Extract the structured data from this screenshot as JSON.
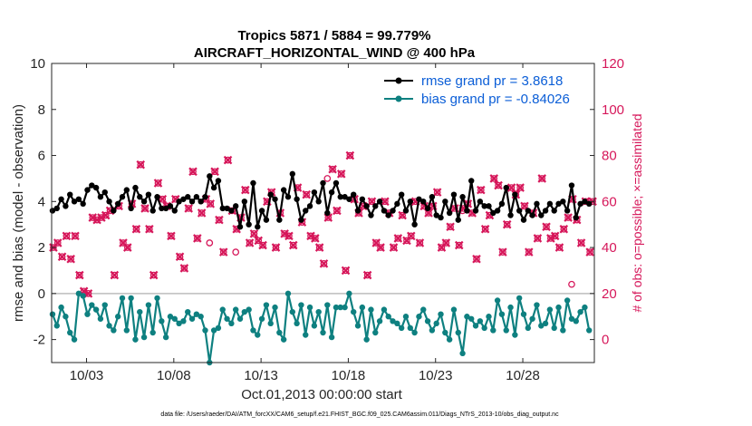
{
  "chart_data": {
    "type": "line",
    "title_line1": "Tropics 5871 / 5884 = 99.779%",
    "title_line2": "AIRCRAFT_HORIZONTAL_WIND @ 400 hPa",
    "ylabel_left": "rmse and bias (model - observation)",
    "ylabel_right": "# of obs: o=possible; ×=assimilated",
    "xlabel": "Oct.01,2013 00:00:00 start",
    "footnote": "data file: /Users/raeder/DAI/ATM_forcXX/CAM6_setup/f.e21.FHIST_BGC.f09_025.CAM6assim.011/Diags_NTrS_2013-10/obs_diag_output.nc",
    "ylim_left": [
      -3,
      10
    ],
    "ylim_right": [
      -10,
      120
    ],
    "xlim": [
      1.0,
      32.1
    ],
    "left_ticks": [
      "-2",
      "0",
      "2",
      "4",
      "6",
      "8",
      "10"
    ],
    "right_ticks": [
      "0",
      "20",
      "40",
      "60",
      "80",
      "100",
      "120"
    ],
    "x_tick_positions": [
      3,
      8,
      13,
      18,
      23,
      28
    ],
    "x_tick_labels": [
      "10/03",
      "10/08",
      "10/13",
      "10/18",
      "10/23",
      "10/28"
    ],
    "legend": {
      "rmse": "rmse grand pr = 3.8618",
      "bias": "bias grand pr = -0.84026"
    },
    "colors": {
      "rmse": "#000000",
      "bias": "#0e8080",
      "obs": "#d6175a",
      "zero_line": "#bdbdbd"
    },
    "series": [
      {
        "name": "rmse",
        "x": [
          1.05,
          1.3,
          1.55,
          1.8,
          2.05,
          2.3,
          2.55,
          2.8,
          3.05,
          3.3,
          3.55,
          3.8,
          4.05,
          4.3,
          4.55,
          4.8,
          5.05,
          5.3,
          5.55,
          5.8,
          6.05,
          6.3,
          6.55,
          6.8,
          7.05,
          7.3,
          7.55,
          7.8,
          8.05,
          8.3,
          8.55,
          8.8,
          9.05,
          9.3,
          9.55,
          9.8,
          10.05,
          10.3,
          10.55,
          10.8,
          11.05,
          11.3,
          11.55,
          11.8,
          12.05,
          12.3,
          12.55,
          12.8,
          13.05,
          13.3,
          13.55,
          13.8,
          14.05,
          14.3,
          14.55,
          14.8,
          15.05,
          15.3,
          15.55,
          15.8,
          16.05,
          16.3,
          16.55,
          16.8,
          17.05,
          17.3,
          17.55,
          17.8,
          18.05,
          18.3,
          18.55,
          18.8,
          19.05,
          19.3,
          19.55,
          19.8,
          20.05,
          20.3,
          20.55,
          20.8,
          21.05,
          21.3,
          21.55,
          21.8,
          22.05,
          22.3,
          22.55,
          22.8,
          23.05,
          23.3,
          23.55,
          23.8,
          24.05,
          24.3,
          24.55,
          24.8,
          25.05,
          25.3,
          25.55,
          25.8,
          26.05,
          26.3,
          26.55,
          26.8,
          27.05,
          27.3,
          27.55,
          27.8,
          28.05,
          28.3,
          28.55,
          28.8,
          29.05,
          29.3,
          29.55,
          29.8,
          30.05,
          30.3,
          30.55,
          30.8,
          31.05,
          31.3,
          31.55,
          31.8
        ],
        "values": [
          3.6,
          3.7,
          4.1,
          3.8,
          4.3,
          4.0,
          4.1,
          3.9,
          4.5,
          4.7,
          4.6,
          4.2,
          4.4,
          4.0,
          3.6,
          3.9,
          4.2,
          4.5,
          3.7,
          4.6,
          4.2,
          4.0,
          4.3,
          3.6,
          4.2,
          3.7,
          3.7,
          3.8,
          3.6,
          4.0,
          4.1,
          4.2,
          4.0,
          4.2,
          4.0,
          4.2,
          5.1,
          4.6,
          4.9,
          3.7,
          3.7,
          3.6,
          3.8,
          2.9,
          4.0,
          3.0,
          4.8,
          2.9,
          3.6,
          3.2,
          4.3,
          4.1,
          3.2,
          4.5,
          4.2,
          5.2,
          4.1,
          3.2,
          3.6,
          3.8,
          4.4,
          4.0,
          4.8,
          3.5,
          4.4,
          4.8,
          4.2,
          4.2,
          4.1,
          4.3,
          3.6,
          4.1,
          3.8,
          3.4,
          3.8,
          4.0,
          3.6,
          3.4,
          3.6,
          3.9,
          4.3,
          3.6,
          4.0,
          3.0,
          4.1,
          4.0,
          3.7,
          4.2,
          3.4,
          3.3,
          4.0,
          3.5,
          4.3,
          3.2,
          4.2,
          3.6,
          4.9,
          3.6,
          4.0,
          3.8,
          3.8,
          3.5,
          3.6,
          3.9,
          4.6,
          3.4,
          4.3,
          3.6,
          3.2,
          3.6,
          3.4,
          3.9,
          3.4,
          3.6,
          3.9,
          3.6,
          3.9,
          4.0,
          3.6,
          4.7,
          3.3,
          3.9,
          4.0,
          3.9
        ]
      },
      {
        "name": "bias",
        "x": [
          1.05,
          1.3,
          1.55,
          1.8,
          2.05,
          2.3,
          2.55,
          2.8,
          3.05,
          3.3,
          3.55,
          3.8,
          4.05,
          4.3,
          4.55,
          4.8,
          5.05,
          5.3,
          5.55,
          5.8,
          6.05,
          6.3,
          6.55,
          6.8,
          7.05,
          7.3,
          7.55,
          7.8,
          8.05,
          8.3,
          8.55,
          8.8,
          9.05,
          9.3,
          9.55,
          9.8,
          10.05,
          10.3,
          10.55,
          10.8,
          11.05,
          11.3,
          11.55,
          11.8,
          12.05,
          12.3,
          12.55,
          12.8,
          13.05,
          13.3,
          13.55,
          13.8,
          14.05,
          14.3,
          14.55,
          14.8,
          15.05,
          15.3,
          15.55,
          15.8,
          16.05,
          16.3,
          16.55,
          16.8,
          17.05,
          17.3,
          17.55,
          17.8,
          18.05,
          18.3,
          18.55,
          18.8,
          19.05,
          19.3,
          19.55,
          19.8,
          20.05,
          20.3,
          20.55,
          20.8,
          21.05,
          21.3,
          21.55,
          21.8,
          22.05,
          22.3,
          22.55,
          22.8,
          23.05,
          23.3,
          23.55,
          23.8,
          24.05,
          24.3,
          24.55,
          24.8,
          25.05,
          25.3,
          25.55,
          25.8,
          26.05,
          26.3,
          26.55,
          26.8,
          27.05,
          27.3,
          27.55,
          27.8,
          28.05,
          28.3,
          28.55,
          28.8,
          29.05,
          29.3,
          29.55,
          29.8,
          30.05,
          30.3,
          30.55,
          30.8,
          31.05,
          31.3,
          31.55,
          31.8
        ],
        "values": [
          -0.9,
          -1.4,
          -0.6,
          -1.0,
          -1.7,
          -2.0,
          0.0,
          -0.1,
          -0.9,
          -0.5,
          -0.7,
          -1.1,
          -0.5,
          -1.4,
          -1.6,
          -1.0,
          -0.2,
          -1.6,
          -0.2,
          -2.0,
          -0.8,
          -1.9,
          -0.5,
          -1.7,
          -0.2,
          -1.2,
          -1.9,
          -1.0,
          -1.1,
          -1.3,
          -1.2,
          -0.8,
          -1.1,
          -0.9,
          -1.0,
          -1.6,
          -3.0,
          -1.6,
          -1.5,
          -0.7,
          -1.1,
          -1.3,
          -0.7,
          -1.1,
          -0.8,
          -0.7,
          -1.6,
          -1.8,
          -1.1,
          -0.5,
          -1.3,
          -0.6,
          -1.7,
          -2.0,
          0.0,
          -0.8,
          -1.3,
          -0.5,
          -1.8,
          -0.6,
          -1.4,
          -0.8,
          -1.7,
          -0.5,
          -1.9,
          -0.6,
          -0.6,
          -0.6,
          0.0,
          -0.8,
          -1.4,
          -0.6,
          -2.0,
          -0.7,
          -1.7,
          -1.2,
          -0.7,
          -1.0,
          -1.2,
          -1.3,
          -1.5,
          -1.0,
          -1.5,
          -1.7,
          -1.0,
          -0.7,
          -1.2,
          -1.6,
          -1.3,
          -0.9,
          -1.7,
          -2.0,
          -0.7,
          -1.7,
          -2.6,
          -1.0,
          -1.1,
          -1.4,
          -1.2,
          -1.5,
          -1.0,
          -1.6,
          -0.3,
          -0.9,
          -1.6,
          -0.6,
          -1.8,
          -0.2,
          -0.9,
          -1.5,
          -1.1,
          -0.5,
          -1.4,
          -1.3,
          -0.7,
          -1.5,
          -0.6,
          -1.6,
          -0.3,
          -1.1,
          -1.2,
          -0.8,
          -0.6,
          -1.6
        ]
      },
      {
        "name": "obs_assimilated",
        "x": [
          1.1,
          1.35,
          1.6,
          1.85,
          2.1,
          2.35,
          2.6,
          2.85,
          3.1,
          3.35,
          3.6,
          3.85,
          4.1,
          4.35,
          4.6,
          4.85,
          5.1,
          5.35,
          5.6,
          5.85,
          6.1,
          6.35,
          6.6,
          6.85,
          7.1,
          7.35,
          7.6,
          7.85,
          8.1,
          8.35,
          8.6,
          8.85,
          9.1,
          9.35,
          9.6,
          9.85,
          10.1,
          10.35,
          10.6,
          10.85,
          11.1,
          11.35,
          11.6,
          11.85,
          12.1,
          12.35,
          12.6,
          12.85,
          13.1,
          13.35,
          13.6,
          13.85,
          14.1,
          14.35,
          14.6,
          14.85,
          15.1,
          15.35,
          15.6,
          15.85,
          16.1,
          16.35,
          16.6,
          16.85,
          17.1,
          17.35,
          17.6,
          17.85,
          18.1,
          18.35,
          18.6,
          18.85,
          19.1,
          19.35,
          19.6,
          19.85,
          20.1,
          20.35,
          20.6,
          20.85,
          21.1,
          21.35,
          21.6,
          21.85,
          22.1,
          22.35,
          22.6,
          22.85,
          23.1,
          23.35,
          23.6,
          23.85,
          24.1,
          24.35,
          24.6,
          24.85,
          25.1,
          25.35,
          25.6,
          25.85,
          26.1,
          26.35,
          26.6,
          26.85,
          27.1,
          27.35,
          27.6,
          27.85,
          28.1,
          28.35,
          28.6,
          28.85,
          29.1,
          29.35,
          29.6,
          29.85,
          30.1,
          30.35,
          30.6,
          30.85,
          31.1,
          31.35,
          31.6,
          31.85,
          32.0
        ],
        "values": [
          40,
          42,
          36,
          45,
          35,
          45,
          28,
          21,
          20,
          53,
          52,
          53,
          54,
          56,
          28,
          58,
          42,
          40,
          59,
          48,
          76,
          57,
          48,
          28,
          68,
          61,
          58,
          45,
          61,
          36,
          31,
          57,
          73,
          44,
          55,
          61,
          59,
          73,
          52,
          38,
          78,
          56,
          48,
          53,
          65,
          42,
          46,
          43,
          41,
          60,
          64,
          40,
          55,
          46,
          45,
          41,
          66,
          51,
          63,
          45,
          44,
          40,
          33,
          53,
          74,
          56,
          72,
          30,
          80,
          61,
          55,
          58,
          28,
          60,
          42,
          40,
          60,
          55,
          40,
          44,
          54,
          43,
          45,
          60,
          42,
          58,
          55,
          58,
          64,
          40,
          42,
          49,
          57,
          41,
          57,
          59,
          55,
          35,
          65,
          48,
          54,
          70,
          67,
          38,
          50,
          66,
          63,
          66,
          58,
          38,
          55,
          44,
          70,
          49,
          44,
          45,
          40,
          48,
          53,
          61,
          52,
          42,
          60,
          38,
          60
        ]
      },
      {
        "name": "obs_possible_extra",
        "x": [
          10.05,
          11.55,
          16.8,
          24.55,
          30.8
        ],
        "values": [
          42,
          38,
          70,
          56,
          24
        ]
      }
    ]
  }
}
